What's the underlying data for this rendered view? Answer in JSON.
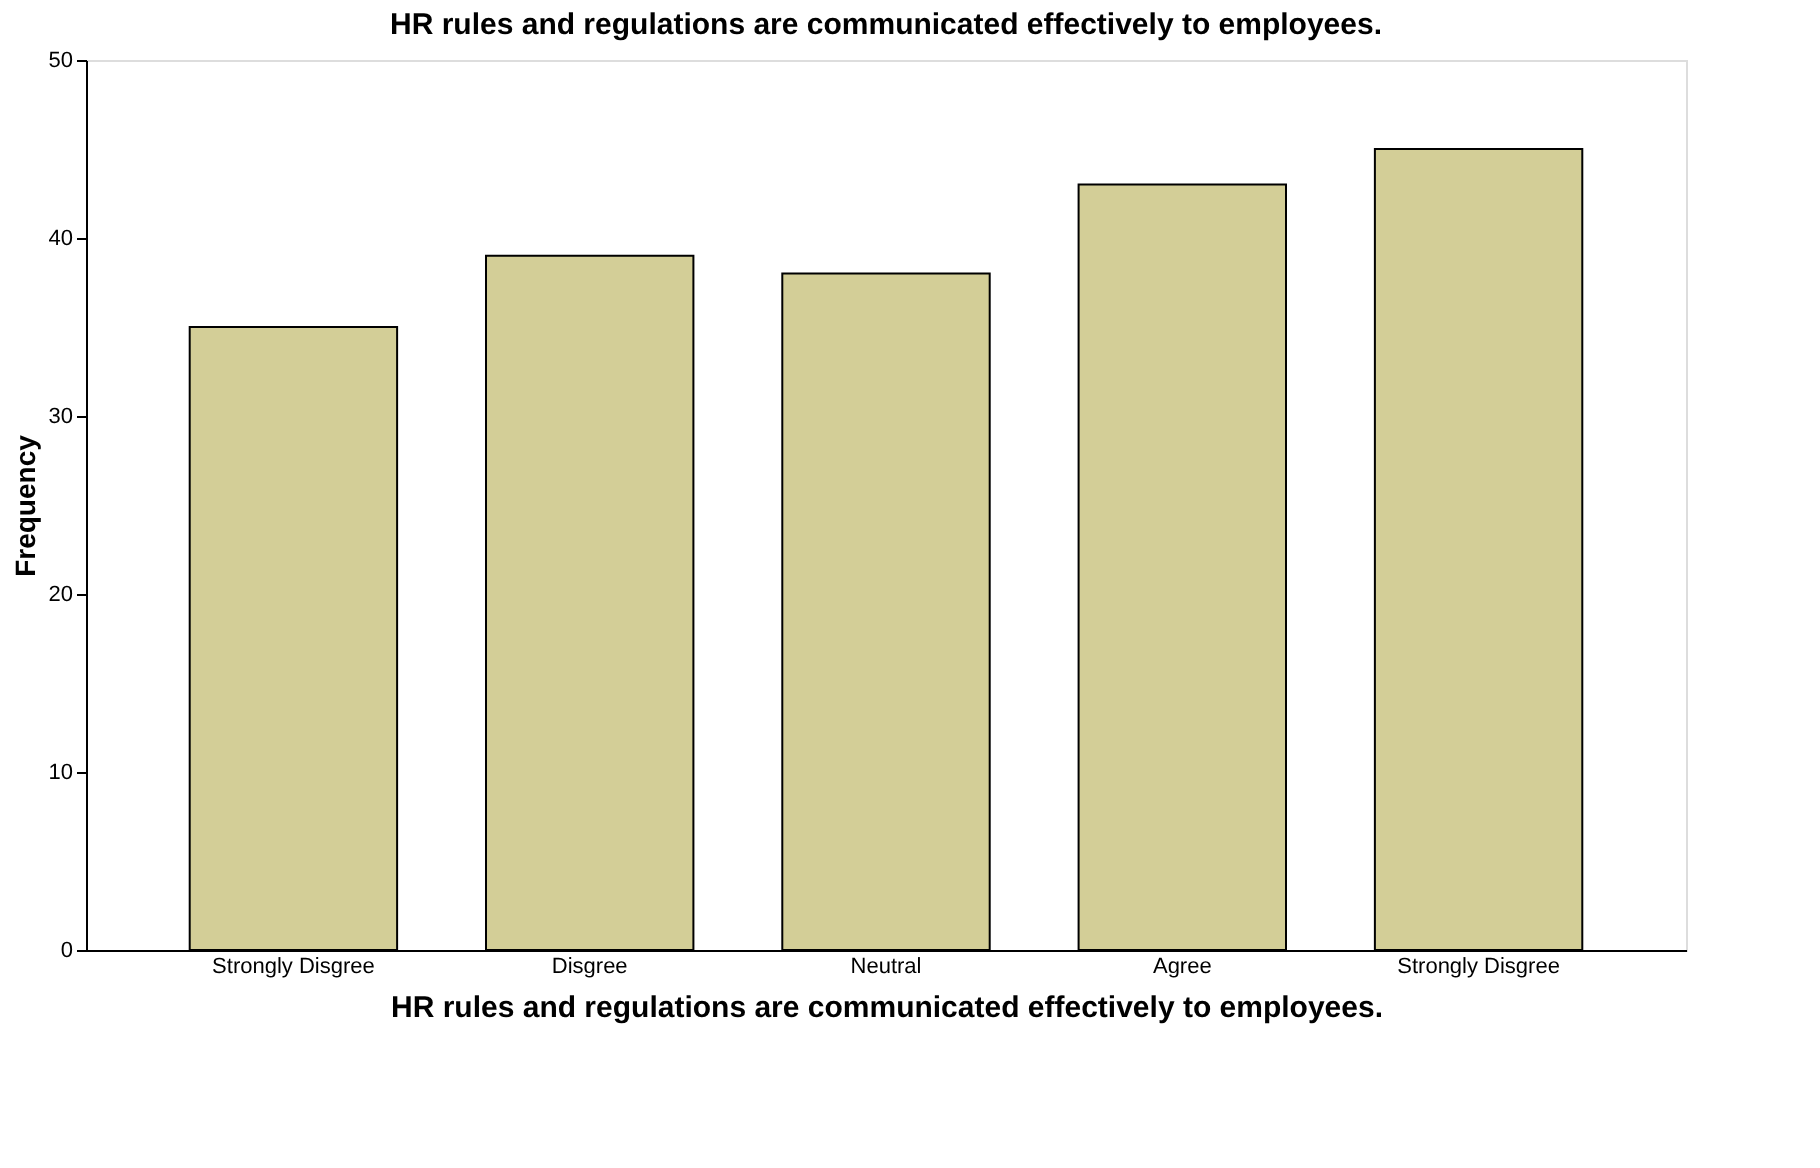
{
  "chart_data": {
    "type": "bar",
    "title": "HR rules and regulations are communicated effectively to employees.",
    "xlabel": "HR rules and regulations are communicated effectively to employees.",
    "ylabel": "Frequency",
    "categories": [
      "Strongly Disgree",
      "Disgree",
      "Neutral",
      "Agree",
      "Strongly Disgree"
    ],
    "values": [
      35,
      39,
      38,
      43,
      45
    ],
    "color": "#d3ce97",
    "ylim": [
      0,
      50
    ],
    "yticks": [
      0,
      10,
      20,
      30,
      40,
      50
    ],
    "grid": false
  }
}
